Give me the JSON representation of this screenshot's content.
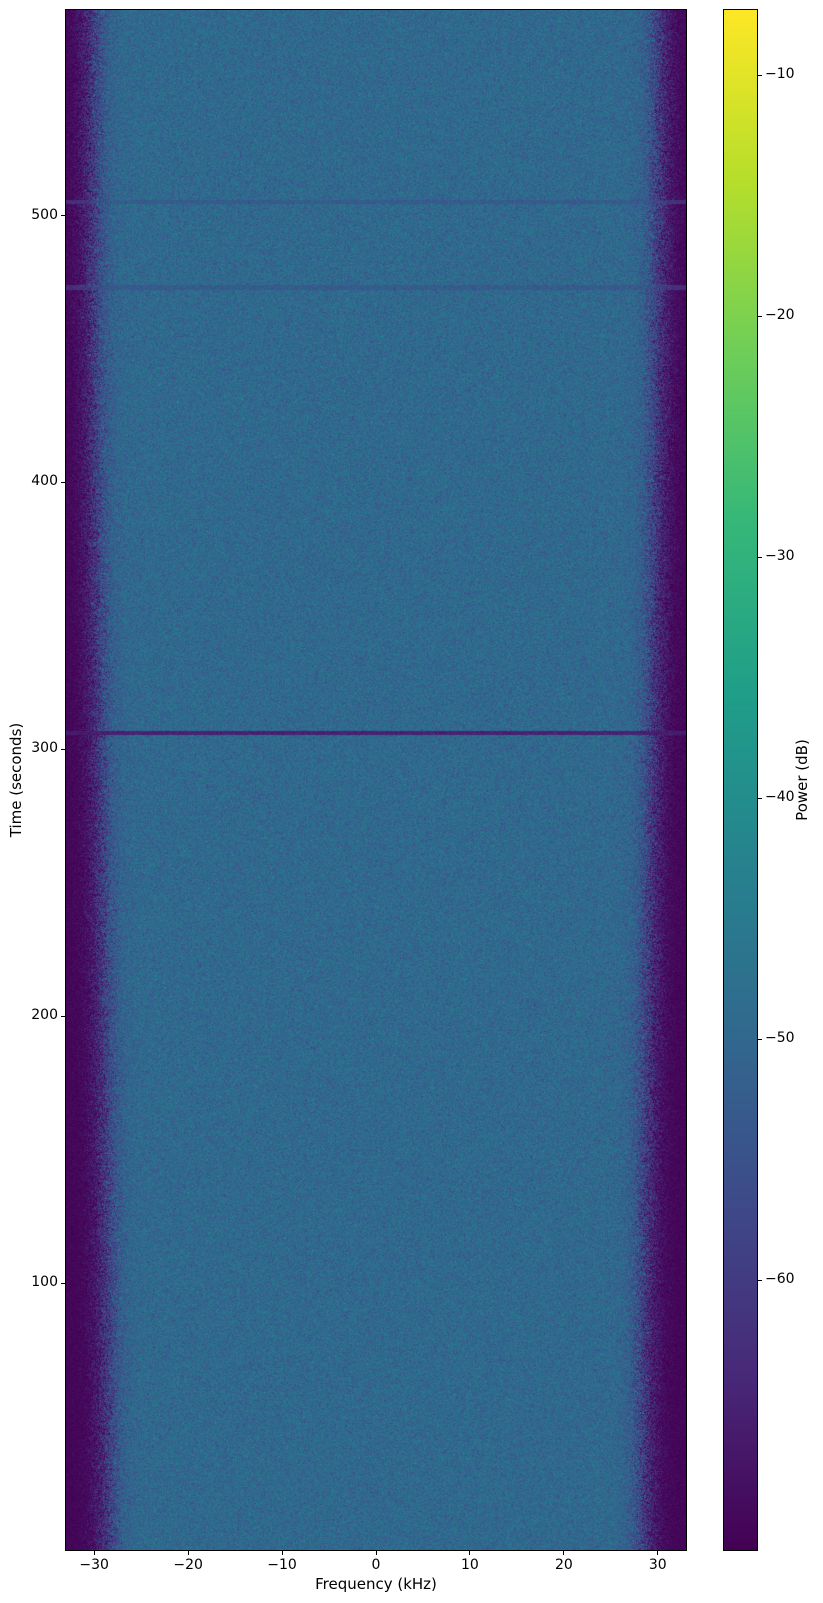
{
  "chart_data": {
    "type": "heatmap",
    "subtype": "spectrogram",
    "title": "",
    "xlabel": "Frequency (kHz)",
    "ylabel": "Time (seconds)",
    "colorbar_label": "Power (dB)",
    "x_range_khz": [
      -33,
      33
    ],
    "y_range_seconds": [
      0,
      577
    ],
    "color_range_db": [
      -71.2,
      -7.3
    ],
    "grid": false,
    "legend": "none",
    "x_ticks": [
      {
        "value": -30,
        "label": "−30"
      },
      {
        "value": -20,
        "label": "−20"
      },
      {
        "value": -10,
        "label": "−10"
      },
      {
        "value": 0,
        "label": "0"
      },
      {
        "value": 10,
        "label": "10"
      },
      {
        "value": 20,
        "label": "20"
      },
      {
        "value": 30,
        "label": "30"
      }
    ],
    "y_ticks": [
      {
        "value": 100,
        "label": "100"
      },
      {
        "value": 200,
        "label": "200"
      },
      {
        "value": 300,
        "label": "300"
      },
      {
        "value": 400,
        "label": "400"
      },
      {
        "value": 500,
        "label": "500"
      }
    ],
    "colorbar_ticks": [
      {
        "value": -10,
        "label": "−10"
      },
      {
        "value": -20,
        "label": "−20"
      },
      {
        "value": -30,
        "label": "−30"
      },
      {
        "value": -40,
        "label": "−40"
      },
      {
        "value": -50,
        "label": "−50"
      },
      {
        "value": -60,
        "label": "−60"
      }
    ],
    "colormap": {
      "name": "viridis",
      "stops": [
        "#440154",
        "#482878",
        "#3e4989",
        "#31688e",
        "#26828e",
        "#1f9e89",
        "#35b779",
        "#6ece58",
        "#b5de2b",
        "#fde725"
      ]
    },
    "signal_model": {
      "passband_level_db": -49.5,
      "passband_halfwidth_khz": 27,
      "rolloff_center_khz": 29.3,
      "rolloff_sharpness_khz": 0.8,
      "rolloff_wobble_khz": 0.8,
      "stopband_drop_db": 21,
      "stopband_level_db": -70.5,
      "noise_sigma_db": 3.0,
      "transition_noise_boost_db": 2.8,
      "artifact_lines": [
        {
          "time_s": 306,
          "level_db": -66,
          "strength": 0.95,
          "thickness_s": 0.8
        },
        {
          "time_s": 473,
          "level_db": -56,
          "strength": 0.5,
          "thickness_s": 0.8
        },
        {
          "time_s": 505,
          "level_db": -56,
          "strength": 0.5,
          "thickness_s": 0.8
        }
      ]
    }
  }
}
